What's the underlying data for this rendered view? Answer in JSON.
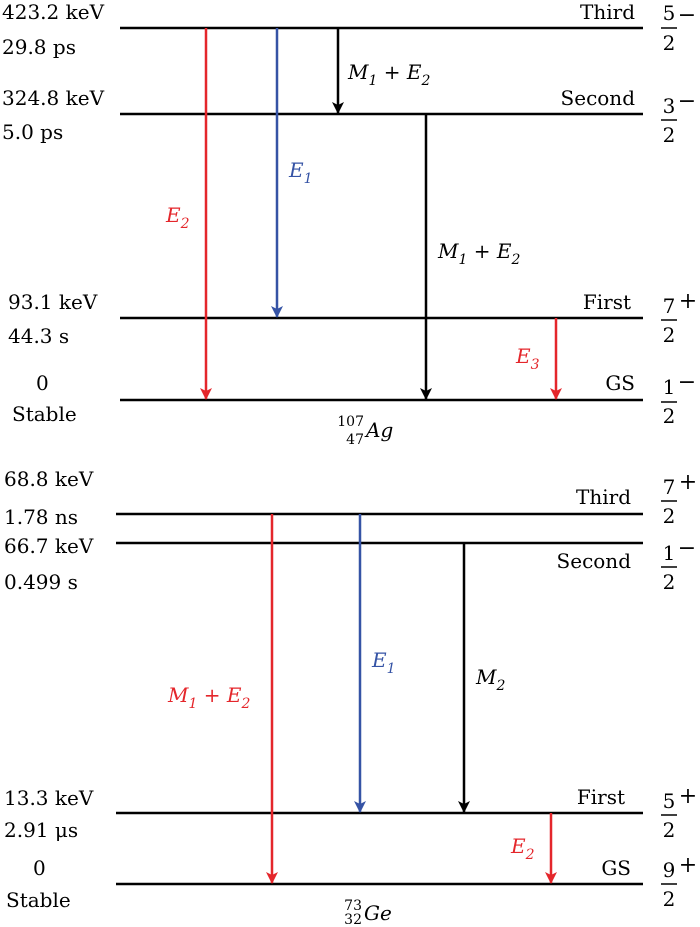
{
  "colors": {
    "red": "#e4262b",
    "blue": "#3553a5",
    "black": "#000000"
  },
  "ag": {
    "nuclide": {
      "mass": "107",
      "atomic": "47",
      "symbol": "Ag"
    },
    "levels": [
      {
        "name": "Third",
        "energy": "423.2 keV",
        "halflife": "29.8 ps",
        "spin_num": "5",
        "spin_den": "2",
        "parity": "−"
      },
      {
        "name": "Second",
        "energy": "324.8 keV",
        "halflife": "5.0 ps",
        "spin_num": "3",
        "spin_den": "2",
        "parity": "−"
      },
      {
        "name": "First",
        "energy": "93.1 keV",
        "halflife": "44.3 s",
        "spin_num": "7",
        "spin_den": "2",
        "parity": "+"
      },
      {
        "name": "GS",
        "energy": "0",
        "halflife": "Stable",
        "spin_num": "1",
        "spin_den": "2",
        "parity": "−"
      }
    ],
    "transitions": [
      {
        "label": "E",
        "sub": "2",
        "extra": "",
        "extra_sub": "",
        "color": "red"
      },
      {
        "label": "E",
        "sub": "1",
        "extra": "",
        "extra_sub": "",
        "color": "blue"
      },
      {
        "label": "M",
        "sub": "1",
        "extra": "E",
        "extra_sub": "2",
        "color": "black"
      },
      {
        "label": "M",
        "sub": "1",
        "extra": "E",
        "extra_sub": "2",
        "color": "black"
      },
      {
        "label": "E",
        "sub": "3",
        "extra": "",
        "extra_sub": "",
        "color": "red"
      }
    ]
  },
  "ge": {
    "nuclide": {
      "mass": "73",
      "atomic": "32",
      "symbol": "Ge"
    },
    "levels": [
      {
        "name": "Third",
        "energy": "68.8 keV",
        "halflife": "1.78 ns",
        "spin_num": "7",
        "spin_den": "2",
        "parity": "+"
      },
      {
        "name": "Second",
        "energy": "66.7 keV",
        "halflife": "0.499 s",
        "spin_num": "1",
        "spin_den": "2",
        "parity": "−"
      },
      {
        "name": "First",
        "energy": "13.3 keV",
        "halflife": "2.91 μs",
        "spin_num": "5",
        "spin_den": "2",
        "parity": "+"
      },
      {
        "name": "GS",
        "energy": "0",
        "halflife": "Stable",
        "spin_num": "9",
        "spin_den": "2",
        "parity": "+"
      }
    ],
    "transitions": [
      {
        "label": "M",
        "sub": "1",
        "extra": "E",
        "extra_sub": "2",
        "color": "red"
      },
      {
        "label": "E",
        "sub": "1",
        "extra": "",
        "extra_sub": "",
        "color": "blue"
      },
      {
        "label": "M",
        "sub": "2",
        "extra": "",
        "extra_sub": "",
        "color": "black"
      },
      {
        "label": "E",
        "sub": "2",
        "extra": "",
        "extra_sub": "",
        "color": "red"
      }
    ]
  }
}
